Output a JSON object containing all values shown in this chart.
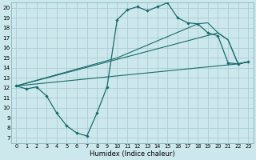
{
  "xlabel": "Humidex (Indice chaleur)",
  "bg_color": "#cce8ec",
  "grid_color": "#aacdd4",
  "line_color": "#1a6b6b",
  "xlim": [
    -0.5,
    23.5
  ],
  "ylim": [
    6.5,
    20.5
  ],
  "xticks": [
    0,
    1,
    2,
    3,
    4,
    5,
    6,
    7,
    8,
    9,
    10,
    11,
    12,
    13,
    14,
    15,
    16,
    17,
    18,
    19,
    20,
    21,
    22,
    23
  ],
  "yticks": [
    7,
    8,
    9,
    10,
    11,
    12,
    13,
    14,
    15,
    16,
    17,
    18,
    19,
    20
  ],
  "line1_x": [
    0,
    1,
    2,
    3,
    4,
    5,
    6,
    7,
    8,
    9,
    10,
    11,
    12,
    13,
    14,
    15,
    16,
    17,
    18,
    19,
    20,
    21,
    22,
    23
  ],
  "line1_y": [
    12.2,
    11.9,
    12.1,
    11.2,
    9.5,
    8.2,
    7.5,
    7.2,
    9.5,
    12.1,
    18.8,
    19.8,
    20.1,
    19.7,
    20.1,
    20.5,
    19.0,
    18.5,
    18.4,
    17.5,
    17.2,
    14.5,
    14.4,
    14.6
  ],
  "line2_x": [
    0,
    22,
    23
  ],
  "line2_y": [
    12.2,
    14.4,
    14.6
  ],
  "line3_x": [
    0,
    20,
    21,
    22,
    23
  ],
  "line3_y": [
    12.2,
    17.5,
    16.8,
    14.4,
    14.6
  ],
  "line4_x": [
    0,
    10,
    18,
    19,
    20,
    21,
    22,
    23
  ],
  "line4_y": [
    12.2,
    15.0,
    18.4,
    18.5,
    17.5,
    16.8,
    14.4,
    14.6
  ],
  "xtick_fontsize": 4.8,
  "ytick_fontsize": 5.2,
  "xlabel_fontsize": 6.0
}
